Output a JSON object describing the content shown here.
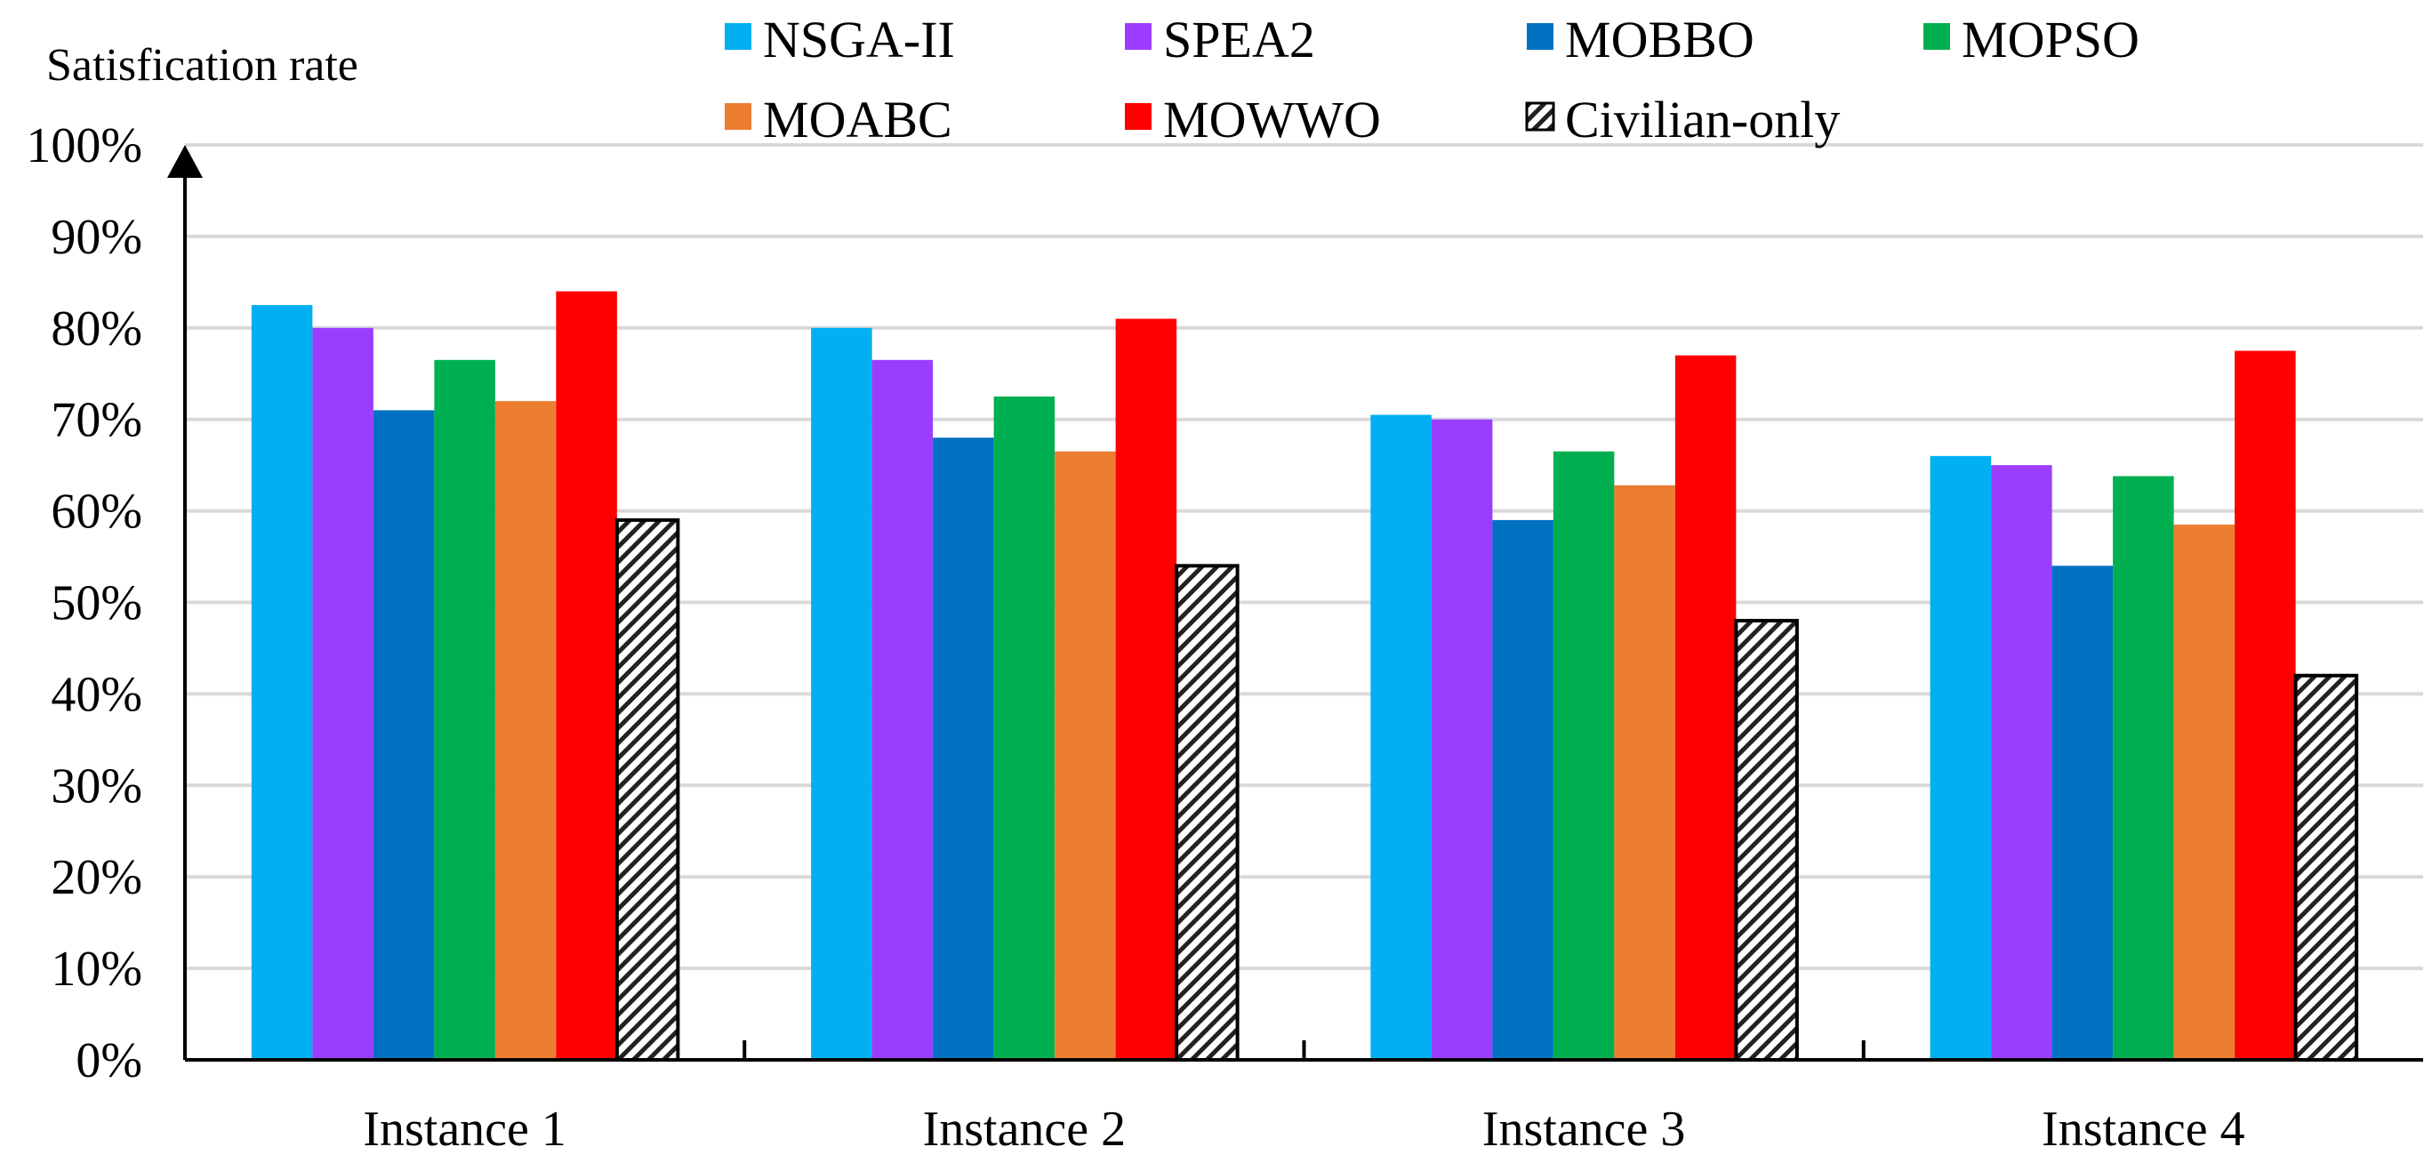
{
  "chart_data": {
    "type": "bar",
    "ylabel": "Satisfication rate",
    "xlabel": "",
    "categories": [
      "Instance 1",
      "Instance 2",
      "Instance 3",
      "Instance 4"
    ],
    "ylim": [
      0,
      100
    ],
    "y_tick_step": 10,
    "y_tick_format": "percent",
    "grid": true,
    "legend_position": "top",
    "series": [
      {
        "name": "NSGA-II",
        "color": "#00B0F0",
        "pattern": "solid",
        "values": [
          82.5,
          80.0,
          70.5,
          66.0
        ]
      },
      {
        "name": "SPEA2",
        "color": "#9B3DFF",
        "pattern": "solid",
        "values": [
          80.0,
          76.5,
          70.0,
          65.0
        ]
      },
      {
        "name": "MOBBO",
        "color": "#0070C0",
        "pattern": "solid",
        "values": [
          71.0,
          68.0,
          59.0,
          54.0
        ]
      },
      {
        "name": "MOPSO",
        "color": "#00B050",
        "pattern": "solid",
        "values": [
          76.5,
          72.5,
          66.5,
          63.8
        ]
      },
      {
        "name": "MOABC",
        "color": "#ED7D31",
        "pattern": "solid",
        "values": [
          72.0,
          66.5,
          62.8,
          58.5
        ]
      },
      {
        "name": "MOWWO",
        "color": "#FF0000",
        "pattern": "solid",
        "values": [
          84.0,
          81.0,
          77.0,
          77.5
        ]
      },
      {
        "name": "Civilian-only",
        "color": "#ffffff",
        "pattern": "hatched",
        "values": [
          59.0,
          54.0,
          48.0,
          42.0
        ]
      }
    ]
  }
}
